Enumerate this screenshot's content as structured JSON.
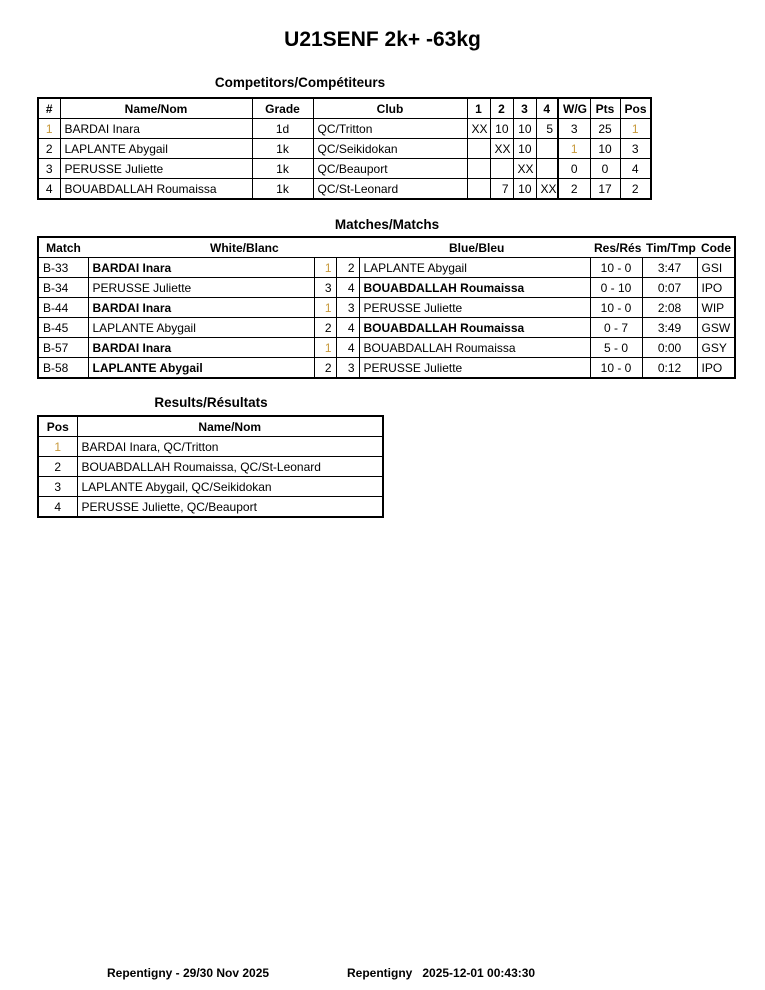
{
  "title": "U21SENF 2k+ -63kg",
  "competitors": {
    "heading": "Competitors/Compétiteurs",
    "headers": [
      "#",
      "Name/Nom",
      "Grade",
      "Club",
      "1",
      "2",
      "3",
      "4",
      "W/G",
      "Pts",
      "Pos"
    ],
    "rows": [
      [
        "1",
        "BARDAI Inara",
        "1d",
        "QC/Tritton",
        "XX",
        "10",
        "10",
        "5",
        "3",
        "25",
        "1"
      ],
      [
        "2",
        "LAPLANTE Abygail",
        "1k",
        "QC/Seikidokan",
        "",
        "XX",
        "10",
        "",
        "1",
        "10",
        "3"
      ],
      [
        "3",
        "PERUSSE Juliette",
        "1k",
        "QC/Beauport",
        "",
        "",
        "XX",
        "",
        "0",
        "0",
        "4"
      ],
      [
        "4",
        "BOUABDALLAH Roumaissa",
        "1k",
        "QC/St-Leonard",
        "",
        "7",
        "10",
        "XX",
        "2",
        "17",
        "2"
      ]
    ]
  },
  "matches": {
    "heading": "Matches/Matchs",
    "headers": [
      "Match",
      "White/Blanc",
      "Blue/Bleu",
      "Res/Rés",
      "Tim/Tmp",
      "Code"
    ],
    "rows": [
      {
        "match": "B-33",
        "white": "BARDAI Inara",
        "wn": "1",
        "bn": "2",
        "blue": "LAPLANTE Abygail",
        "res": "10 - 0",
        "time": "3:47",
        "code": "GSI",
        "winner": "white"
      },
      {
        "match": "B-34",
        "white": "PERUSSE Juliette",
        "wn": "3",
        "bn": "4",
        "blue": "BOUABDALLAH Roumaissa",
        "res": "0 - 10",
        "time": "0:07",
        "code": "IPO",
        "winner": "blue"
      },
      {
        "match": "B-44",
        "white": "BARDAI Inara",
        "wn": "1",
        "bn": "3",
        "blue": "PERUSSE Juliette",
        "res": "10 - 0",
        "time": "2:08",
        "code": "WIP",
        "winner": "white"
      },
      {
        "match": "B-45",
        "white": "LAPLANTE Abygail",
        "wn": "2",
        "bn": "4",
        "blue": "BOUABDALLAH Roumaissa",
        "res": "0 - 7",
        "time": "3:49",
        "code": "GSW",
        "winner": "blue"
      },
      {
        "match": "B-57",
        "white": "BARDAI Inara",
        "wn": "1",
        "bn": "4",
        "blue": "BOUABDALLAH Roumaissa",
        "res": "5 - 0",
        "time": "0:00",
        "code": "GSY",
        "winner": "white"
      },
      {
        "match": "B-58",
        "white": "LAPLANTE Abygail",
        "wn": "2",
        "bn": "3",
        "blue": "PERUSSE Juliette",
        "res": "10 - 0",
        "time": "0:12",
        "code": "IPO",
        "winner": "white"
      }
    ]
  },
  "results": {
    "heading": "Results/Résultats",
    "headers": [
      "Pos",
      "Name/Nom"
    ],
    "rows": [
      [
        "1",
        "BARDAI Inara, QC/Tritton"
      ],
      [
        "2",
        "BOUABDALLAH Roumaissa, QC/St-Leonard"
      ],
      [
        "3",
        "LAPLANTE Abygail, QC/Seikidokan"
      ],
      [
        "4",
        "PERUSSE Juliette, QC/Beauport"
      ]
    ]
  },
  "footer": {
    "left": "Repentigny - 29/30 Nov 2025",
    "right": "Repentigny   2025-12-01 00:43:30"
  }
}
